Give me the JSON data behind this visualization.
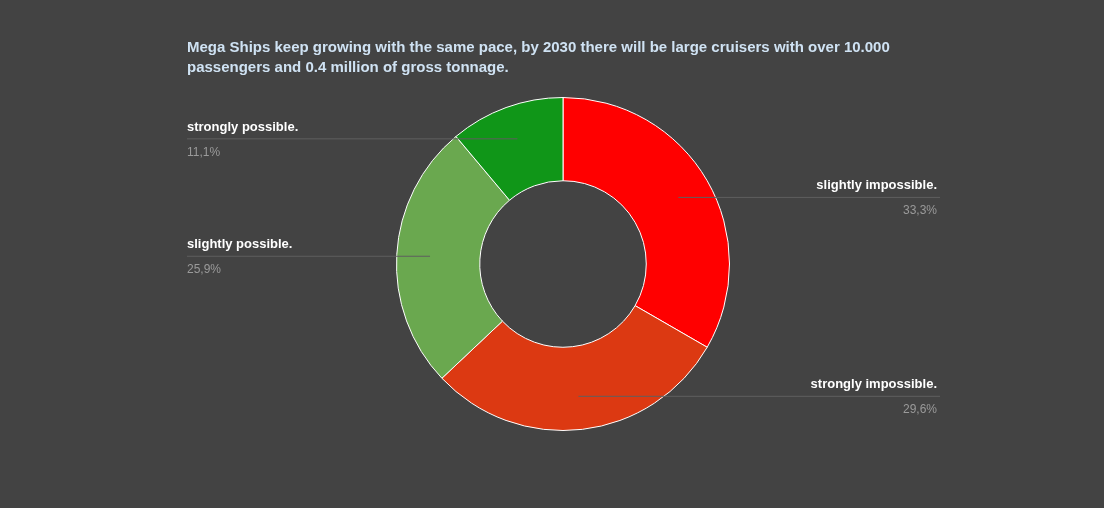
{
  "chart_data": {
    "type": "donut",
    "title": "Mega Ships keep growing with the same pace, by 2030 there will be large cruisers with over 10.000 passengers and 0.4 million of gross tonnage.",
    "categories": [
      "slightly impossible.",
      "strongly impossible.",
      "slightly possible.",
      "strongly possible."
    ],
    "values": [
      33.3,
      29.6,
      25.9,
      11.1
    ],
    "value_labels": [
      "33,3%",
      "29,6%",
      "25,9%",
      "11,1%"
    ],
    "colors": [
      "#ff0000",
      "#dc3912",
      "#6aa84f",
      "#109618"
    ],
    "legend": false
  }
}
